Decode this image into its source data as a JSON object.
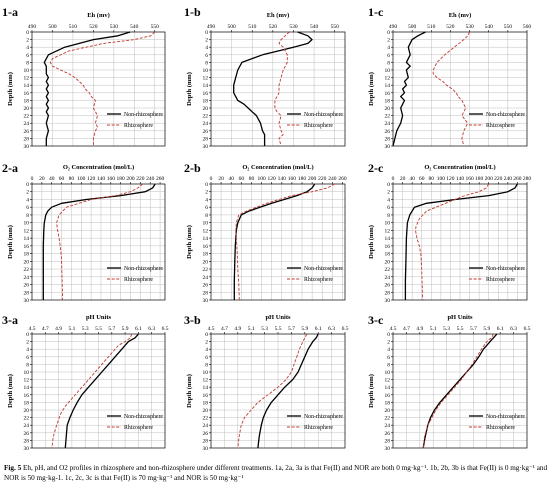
{
  "caption": {
    "lead": "Fig. 5",
    "text": " Eh, pH, and O2 profiles in rhizosphere and non-rhizosphere under different treatments. 1a, 2a, 3a is that Fe(II) and NOR are both 0 mg·kg⁻¹. 1b, 2b, 3b is that Fe(II) is 0 mg·kg⁻¹ and NOR is 50 mg·kg-1. 1c, 2c, 3c is that Fe(II) is 70 mg·kg⁻¹ and NOR is 50 mg·kg⁻¹"
  },
  "colors": {
    "non_rhizosphere": "#000000",
    "rhizosphere": "#c0392b",
    "grid": "#bfbfbf"
  },
  "chart_data": [
    {
      "id": "1-a",
      "type": "line",
      "xlabel": "Eh (mv)",
      "ylabel": "Depth (mm)",
      "xticks": [
        "490",
        "500",
        "510",
        "520",
        "530",
        "540",
        "550"
      ],
      "xlim": [
        490,
        555
      ],
      "yticks": [
        "0",
        "2",
        "4",
        "6",
        "8",
        "10",
        "12",
        "14",
        "16",
        "18",
        "20",
        "22",
        "24",
        "26",
        "28",
        "30"
      ],
      "ylim": [
        0,
        30
      ],
      "legend_position": "lower-right",
      "series": [
        {
          "name": "Non-rhizosphere",
          "style": "solid",
          "x": [
            538,
            532,
            520,
            506,
            498,
            496,
            497,
            497,
            497,
            498,
            497,
            498,
            497,
            498,
            497,
            498,
            497,
            498,
            497,
            498,
            497,
            498,
            497,
            497
          ],
          "y": [
            0,
            1,
            2,
            4,
            6,
            8,
            9,
            10,
            11,
            12,
            13,
            14,
            15,
            16,
            17,
            18,
            19,
            20,
            21,
            22,
            24,
            26,
            28,
            30
          ]
        },
        {
          "name": "Rhizosphere",
          "style": "dashed",
          "x": [
            550,
            548,
            540,
            525,
            508,
            500,
            499,
            500,
            504,
            508,
            511,
            513,
            515,
            516,
            518,
            519,
            521,
            520,
            522,
            521,
            522,
            521,
            520,
            520
          ],
          "y": [
            0,
            1,
            2,
            3,
            5,
            7,
            8,
            9,
            10,
            11,
            12,
            13,
            14,
            15,
            16,
            17,
            18,
            20,
            22,
            24,
            25,
            26,
            28,
            30
          ]
        }
      ]
    },
    {
      "id": "1-b",
      "type": "line",
      "xlabel": "Eh (mv)",
      "ylabel": "Depth (mm)",
      "xticks": [
        "490",
        "500",
        "510",
        "520",
        "530",
        "540",
        "550"
      ],
      "xlim": [
        490,
        555
      ],
      "yticks": [
        "0",
        "2",
        "4",
        "6",
        "8",
        "10",
        "12",
        "14",
        "16",
        "18",
        "20",
        "22",
        "24",
        "26",
        "28",
        "30"
      ],
      "ylim": [
        0,
        30
      ],
      "legend_position": "lower-right",
      "series": [
        {
          "name": "Non-rhizosphere",
          "style": "solid",
          "x": [
            532,
            537,
            539,
            537,
            530,
            515,
            505,
            503,
            502,
            501,
            501,
            502,
            503,
            506,
            508,
            510,
            512,
            514,
            515,
            516,
            516,
            516
          ],
          "y": [
            0,
            1,
            2,
            3,
            4,
            6,
            8,
            10,
            12,
            14,
            16,
            17,
            18,
            19,
            20,
            21,
            22,
            24,
            26,
            27,
            28,
            30
          ]
        },
        {
          "name": "Rhizosphere",
          "style": "dashed",
          "x": [
            528,
            526,
            524,
            523,
            525,
            527,
            527,
            525,
            524,
            523,
            523,
            522,
            521,
            521,
            521,
            522,
            524,
            523,
            524,
            525,
            523,
            524
          ],
          "y": [
            0,
            1,
            2,
            3,
            4,
            6,
            8,
            10,
            12,
            14,
            16,
            17,
            18,
            19,
            20,
            21,
            22,
            24,
            26,
            27,
            28,
            30
          ]
        }
      ]
    },
    {
      "id": "1-c",
      "type": "line",
      "xlabel": "Eh (mv)",
      "ylabel": "Depth (mm)",
      "xticks": [
        "490",
        "500",
        "510",
        "520",
        "530",
        "540",
        "550",
        "560"
      ],
      "xlim": [
        490,
        560
      ],
      "yticks": [
        "0",
        "2",
        "4",
        "6",
        "8",
        "10",
        "12",
        "14",
        "16",
        "18",
        "20",
        "22",
        "24",
        "26",
        "28",
        "30"
      ],
      "ylim": [
        0,
        30
      ],
      "legend_position": "lower-right",
      "series": [
        {
          "name": "Non-rhizosphere",
          "style": "solid",
          "x": [
            507,
            503,
            500,
            498,
            499,
            497,
            499,
            497,
            498,
            496,
            497,
            495,
            496,
            494,
            496,
            494,
            495,
            494,
            493,
            492,
            491,
            490
          ],
          "y": [
            0,
            1,
            2,
            4,
            6,
            8,
            9,
            10,
            12,
            13,
            14,
            15,
            16,
            17,
            18,
            20,
            22,
            24,
            25,
            26,
            28,
            30
          ]
        },
        {
          "name": "Rhizosphere",
          "style": "dashed",
          "x": [
            530,
            529,
            527,
            522,
            517,
            513,
            511,
            511,
            513,
            516,
            518,
            521,
            523,
            524,
            526,
            527,
            528,
            526,
            529,
            527,
            526,
            527
          ],
          "y": [
            0,
            1,
            2,
            4,
            6,
            8,
            10,
            11,
            12,
            13,
            14,
            15,
            16,
            17,
            18,
            19,
            20,
            22,
            24,
            26,
            28,
            30
          ]
        }
      ]
    },
    {
      "id": "2-a",
      "type": "line",
      "xlabel": "O₂ Concentration (mol/L)",
      "ylabel": "Depth (mm)",
      "xticks": [
        "0",
        "20",
        "40",
        "60",
        "80",
        "100",
        "120",
        "140",
        "160",
        "180",
        "200",
        "220",
        "240",
        "260"
      ],
      "xlim": [
        0,
        270
      ],
      "yticks": [
        "0",
        "2",
        "4",
        "6",
        "8",
        "10",
        "12",
        "14",
        "16",
        "18",
        "20",
        "22",
        "24",
        "26",
        "28",
        "30"
      ],
      "ylim": [
        0,
        30
      ],
      "legend_position": "lower-right",
      "series": [
        {
          "name": "Non-rhizosphere",
          "style": "solid",
          "x": [
            250,
            245,
            230,
            180,
            110,
            60,
            40,
            32,
            28,
            25,
            24,
            23,
            23,
            23,
            23
          ],
          "y": [
            0,
            1,
            2,
            3,
            4,
            5,
            6,
            7,
            8,
            10,
            12,
            16,
            20,
            25,
            30
          ]
        },
        {
          "name": "Rhizosphere",
          "style": "dashed",
          "x": [
            225,
            215,
            200,
            170,
            120,
            70,
            55,
            50,
            52,
            55,
            57,
            59,
            60,
            61,
            62,
            62
          ],
          "y": [
            0,
            1,
            2,
            3,
            4,
            6,
            8,
            10,
            12,
            14,
            16,
            18,
            20,
            24,
            28,
            30
          ]
        }
      ]
    },
    {
      "id": "2-b",
      "type": "line",
      "xlabel": "O₂ Concentration (mol/L)",
      "ylabel": "Depth (mm)",
      "xticks": [
        "0",
        "20",
        "40",
        "60",
        "80",
        "100",
        "120",
        "140",
        "160",
        "180",
        "200",
        "220",
        "240",
        "260"
      ],
      "xlim": [
        0,
        265
      ],
      "yticks": [
        "0",
        "2",
        "4",
        "6",
        "8",
        "10",
        "12",
        "14",
        "16",
        "18",
        "20",
        "22",
        "24",
        "26",
        "28",
        "30"
      ],
      "ylim": [
        0,
        30
      ],
      "legend_position": "lower-right",
      "series": [
        {
          "name": "Non-rhizosphere",
          "style": "solid",
          "x": [
            205,
            200,
            190,
            170,
            120,
            75,
            60,
            53,
            50,
            48,
            47,
            46,
            46
          ],
          "y": [
            0,
            1,
            2,
            3,
            5,
            7,
            8,
            10,
            12,
            16,
            20,
            25,
            30
          ]
        },
        {
          "name": "Rhizosphere",
          "style": "dashed",
          "x": [
            245,
            230,
            200,
            160,
            110,
            70,
            55,
            50,
            49,
            50,
            52,
            53,
            55,
            56
          ],
          "y": [
            0,
            1,
            2,
            3,
            5,
            7,
            8,
            10,
            12,
            14,
            18,
            22,
            26,
            30
          ]
        }
      ]
    },
    {
      "id": "2-c",
      "type": "line",
      "xlabel": "O₂ Concentration (mol/L)",
      "ylabel": "Depth (mm)",
      "xticks": [
        "0",
        "20",
        "40",
        "60",
        "80",
        "100",
        "120",
        "140",
        "160",
        "180",
        "200",
        "220",
        "240",
        "260",
        "280"
      ],
      "xlim": [
        0,
        280
      ],
      "yticks": [
        "0",
        "2",
        "4",
        "6",
        "8",
        "10",
        "12",
        "14",
        "16",
        "18",
        "20",
        "22",
        "24",
        "26",
        "28",
        "30"
      ],
      "ylim": [
        0,
        30
      ],
      "legend_position": "lower-right",
      "series": [
        {
          "name": "Non-rhizosphere",
          "style": "solid",
          "x": [
            260,
            255,
            240,
            200,
            130,
            70,
            45,
            35,
            30,
            28,
            27,
            26,
            26
          ],
          "y": [
            0,
            1,
            2,
            3,
            4,
            5,
            6,
            8,
            10,
            14,
            20,
            25,
            30
          ]
        },
        {
          "name": "Rhizosphere",
          "style": "dashed",
          "x": [
            200,
            195,
            180,
            150,
            110,
            70,
            55,
            48,
            47,
            50,
            55,
            58,
            60,
            61,
            62
          ],
          "y": [
            0,
            1,
            2,
            3,
            5,
            7,
            9,
            11,
            12,
            14,
            16,
            18,
            22,
            26,
            30
          ]
        }
      ]
    },
    {
      "id": "3-a",
      "type": "line",
      "xlabel": "pH Units",
      "ylabel": "Depth (mm)",
      "xticks": [
        "4.5",
        "4.7",
        "4.9",
        "5.1",
        "5.3",
        "5.5",
        "5.7",
        "5.9",
        "6.1",
        "6.3",
        "6.5"
      ],
      "xlim": [
        4.5,
        6.5
      ],
      "yticks": [
        "0",
        "2",
        "4",
        "6",
        "8",
        "10",
        "12",
        "14",
        "16",
        "18",
        "20",
        "22",
        "24",
        "26",
        "28",
        "30"
      ],
      "ylim": [
        0,
        30
      ],
      "legend_position": "lower-right",
      "series": [
        {
          "name": "Non-rhizosphere",
          "style": "solid",
          "x": [
            6.1,
            6.05,
            5.95,
            5.85,
            5.75,
            5.65,
            5.55,
            5.45,
            5.35,
            5.25,
            5.18,
            5.12,
            5.07,
            5.03,
            5.0
          ],
          "y": [
            0,
            1,
            2,
            4,
            6,
            8,
            10,
            12,
            14,
            16,
            18,
            20,
            22,
            24,
            30
          ]
        },
        {
          "name": "Rhizosphere",
          "style": "dashed",
          "x": [
            6.0,
            5.98,
            5.9,
            5.8,
            5.7,
            5.6,
            5.5,
            5.4,
            5.3,
            5.2,
            5.1,
            5.0,
            4.93,
            4.87,
            4.82,
            4.8
          ],
          "y": [
            0,
            1,
            2,
            3,
            5,
            7,
            9,
            11,
            13,
            15,
            17,
            19,
            21,
            24,
            27,
            30
          ]
        }
      ]
    },
    {
      "id": "3-b",
      "type": "line",
      "xlabel": "pH Units",
      "ylabel": "Depth (mm)",
      "xticks": [
        "4.5",
        "4.7",
        "4.9",
        "5.1",
        "5.3",
        "5.5",
        "5.7",
        "5.9",
        "6.1",
        "6.3",
        "6.5"
      ],
      "xlim": [
        4.5,
        6.5
      ],
      "yticks": [
        "0",
        "2",
        "4",
        "6",
        "8",
        "10",
        "12",
        "14",
        "16",
        "18",
        "20",
        "22",
        "24",
        "26",
        "28",
        "30"
      ],
      "ylim": [
        0,
        30
      ],
      "legend_position": "lower-right",
      "series": [
        {
          "name": "Non-rhizosphere",
          "style": "solid",
          "x": [
            6.1,
            6.07,
            6.02,
            5.95,
            5.9,
            5.85,
            5.8,
            5.72,
            5.6,
            5.5,
            5.4,
            5.33,
            5.28,
            5.25,
            5.22,
            5.2
          ],
          "y": [
            0,
            1,
            2,
            4,
            6,
            8,
            10,
            12,
            14,
            16,
            18,
            20,
            22,
            24,
            27,
            30
          ]
        },
        {
          "name": "Rhizosphere",
          "style": "dashed",
          "x": [
            5.93,
            5.9,
            5.87,
            5.82,
            5.78,
            5.74,
            5.7,
            5.62,
            5.5,
            5.35,
            5.2,
            5.1,
            5.0,
            4.95,
            4.92,
            4.9
          ],
          "y": [
            0,
            1,
            2,
            4,
            6,
            8,
            10,
            12,
            14,
            16,
            18,
            20,
            22,
            24,
            27,
            30
          ]
        }
      ]
    },
    {
      "id": "3-c",
      "type": "line",
      "xlabel": "pH Units",
      "ylabel": "Depth (mm)",
      "xticks": [
        "4.5",
        "4.7",
        "4.9",
        "5.1",
        "5.3",
        "5.5",
        "5.7",
        "5.9",
        "6.1",
        "6.3",
        "6.5"
      ],
      "xlim": [
        4.5,
        6.5
      ],
      "yticks": [
        "0",
        "2",
        "4",
        "6",
        "8",
        "10",
        "12",
        "14",
        "16",
        "18",
        "20",
        "22",
        "24",
        "26",
        "28",
        "30"
      ],
      "ylim": [
        0,
        30
      ],
      "legend_position": "lower-right",
      "series": [
        {
          "name": "Non-rhizosphere",
          "style": "solid",
          "x": [
            6.05,
            6.0,
            5.95,
            5.85,
            5.78,
            5.7,
            5.6,
            5.5,
            5.4,
            5.3,
            5.2,
            5.12,
            5.06,
            5.02,
            4.98,
            4.95
          ],
          "y": [
            0,
            1,
            2,
            4,
            6,
            8,
            10,
            12,
            14,
            16,
            18,
            20,
            22,
            24,
            27,
            30
          ]
        },
        {
          "name": "Rhizosphere",
          "style": "dashed",
          "x": [
            6.0,
            5.97,
            5.9,
            5.82,
            5.75,
            5.68,
            5.6,
            5.52,
            5.42,
            5.32,
            5.22,
            5.14,
            5.08,
            5.02,
            4.97,
            4.95
          ],
          "y": [
            0,
            1,
            2,
            4,
            6,
            8,
            10,
            12,
            14,
            16,
            18,
            20,
            22,
            24,
            27,
            30
          ]
        }
      ]
    }
  ]
}
